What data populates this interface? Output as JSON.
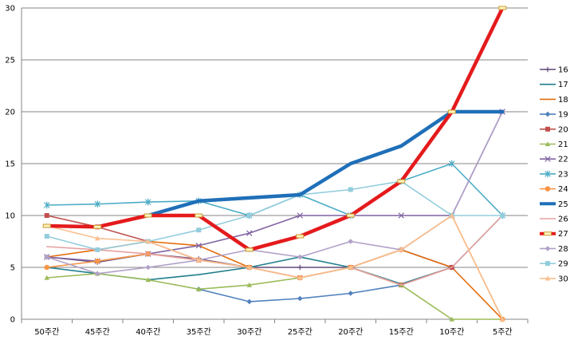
{
  "chart_data": {
    "type": "line",
    "title": "",
    "xlabel": "",
    "ylabel": "",
    "categories": [
      "50주간",
      "45주간",
      "40주간",
      "35주간",
      "30주간",
      "25주간",
      "20주간",
      "15주간",
      "10주간",
      "5주간"
    ],
    "ylim": [
      0,
      30
    ],
    "yticks": [
      0,
      5,
      10,
      15,
      20,
      25,
      30
    ],
    "grid": "horizontal",
    "legend_position": "right",
    "series": [
      {
        "name": "16",
        "color": "#60497a",
        "marker": "plus",
        "bold": false,
        "values": [
          6,
          5.5,
          6.3,
          5.8,
          5,
          5,
          5,
          6.7,
          5,
          null
        ]
      },
      {
        "name": "17",
        "color": "#1f7f8c",
        "marker": "none",
        "bold": false,
        "values": [
          5,
          4.4,
          3.8,
          4.3,
          5,
          6,
          5,
          3.4,
          5,
          10
        ]
      },
      {
        "name": "18",
        "color": "#e36c0a",
        "marker": "none",
        "bold": false,
        "values": [
          6,
          6.7,
          7.5,
          7.1,
          5,
          4,
          5,
          6.7,
          5,
          0
        ]
      },
      {
        "name": "19",
        "color": "#4f81bd",
        "marker": "diamond",
        "bold": false,
        "values": [
          null,
          null,
          null,
          2.9,
          1.7,
          2,
          2.5,
          3.3,
          null,
          null
        ]
      },
      {
        "name": "20",
        "color": "#c0504d",
        "marker": "square",
        "bold": false,
        "values": [
          10,
          8.9,
          7.5,
          5.7,
          5,
          4,
          5,
          3.3,
          5,
          null
        ]
      },
      {
        "name": "21",
        "color": "#9bbb59",
        "marker": "triangle",
        "bold": false,
        "values": [
          4,
          4.4,
          3.8,
          2.9,
          3.3,
          4,
          5,
          3.3,
          0,
          0
        ]
      },
      {
        "name": "22",
        "color": "#8064a2",
        "marker": "x",
        "bold": false,
        "values": [
          6,
          5.6,
          6.3,
          7.1,
          8.3,
          10,
          10,
          10,
          10,
          20
        ]
      },
      {
        "name": "23",
        "color": "#4bacc6",
        "marker": "star",
        "bold": false,
        "values": [
          11,
          11.1,
          11.3,
          11.4,
          10,
          12,
          10,
          13.3,
          15,
          10
        ]
      },
      {
        "name": "24",
        "color": "#f79646",
        "marker": "circle",
        "bold": false,
        "values": [
          5,
          5.6,
          6.3,
          5.7,
          5,
          4,
          5,
          6.7,
          10,
          0
        ]
      },
      {
        "name": "25",
        "color": "#1f6fb8",
        "marker": "none",
        "bold": true,
        "values": [
          null,
          null,
          10,
          11.4,
          11.7,
          12,
          15,
          16.7,
          20,
          20
        ]
      },
      {
        "name": "26",
        "color": "#e6a0a0",
        "marker": "none",
        "bold": false,
        "values": [
          7,
          6.7,
          6.3,
          5.7,
          5,
          4,
          5,
          3.3,
          5,
          10
        ]
      },
      {
        "name": "27",
        "color": "#e41a1c",
        "marker": "dash",
        "bold": true,
        "values": [
          9,
          8.9,
          10,
          10,
          6.7,
          8,
          10,
          13.3,
          20,
          30
        ]
      },
      {
        "name": "28",
        "color": "#b1a0c7",
        "marker": "diamond",
        "bold": false,
        "values": [
          6,
          4.4,
          5,
          5.7,
          6.7,
          6,
          7.5,
          6.7,
          10,
          20
        ]
      },
      {
        "name": "29",
        "color": "#93cddd",
        "marker": "square",
        "bold": false,
        "values": [
          8,
          6.7,
          7.5,
          8.6,
          10,
          12,
          12.5,
          13.3,
          10,
          10
        ]
      },
      {
        "name": "30",
        "color": "#fabf8f",
        "marker": "triangle",
        "bold": false,
        "values": [
          9,
          7.8,
          7.5,
          5.7,
          5,
          4,
          5,
          6.7,
          10,
          0
        ]
      }
    ]
  }
}
